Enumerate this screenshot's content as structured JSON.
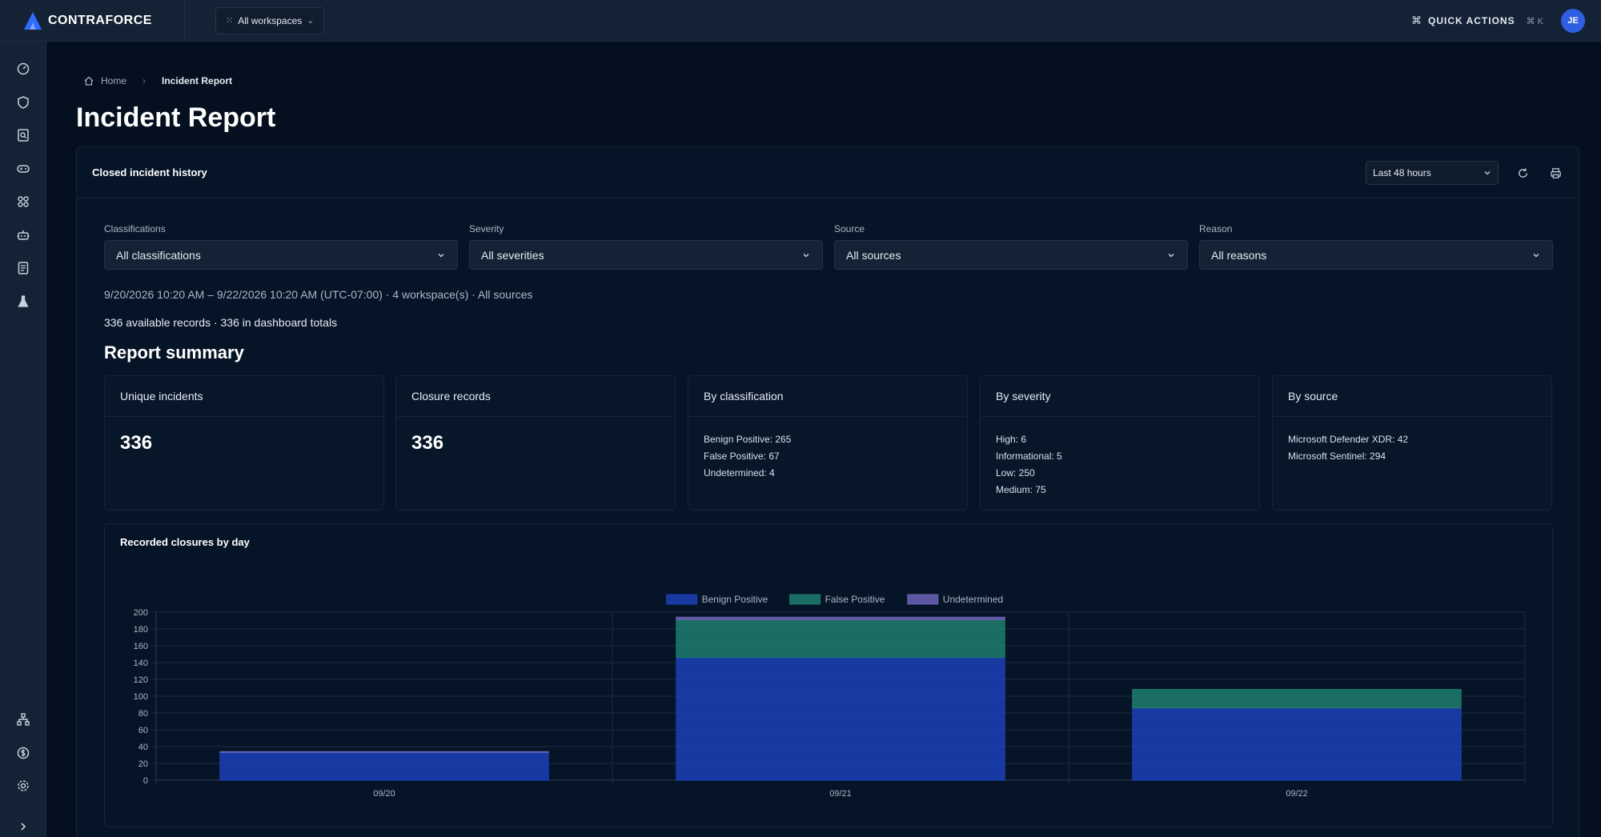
{
  "app": {
    "name": "CONTRAFORCE"
  },
  "topbar": {
    "workspace_select": "All workspaces",
    "quick_actions": "QUICK ACTIONS",
    "quick_actions_shortcut": "⌘ K",
    "avatar_initials": "JE"
  },
  "sidebar": {
    "items": [
      {
        "name": "dashboard-icon"
      },
      {
        "name": "shield-icon"
      },
      {
        "name": "search-document-icon"
      },
      {
        "name": "gamepad-icon"
      },
      {
        "name": "integrations-icon"
      },
      {
        "name": "robot-icon"
      },
      {
        "name": "report-icon"
      },
      {
        "name": "flask-icon"
      },
      {
        "name": "org-chart-icon"
      },
      {
        "name": "billing-icon"
      },
      {
        "name": "settings-icon"
      },
      {
        "name": "expand-icon"
      }
    ]
  },
  "breadcrumb": {
    "home": "Home",
    "current": "Incident Report"
  },
  "page": {
    "title": "Incident Report"
  },
  "panel": {
    "title": "Closed incident history",
    "range": "Last 48 hours"
  },
  "filters": [
    {
      "label": "Classifications",
      "value": "All classifications"
    },
    {
      "label": "Severity",
      "value": "All severities"
    },
    {
      "label": "Source",
      "value": "All sources"
    },
    {
      "label": "Reason",
      "value": "All reasons"
    }
  ],
  "meta": {
    "range_line": "9/20/2026 10:20 AM – 9/22/2026 10:20 AM (UTC-07:00) · 4 workspace(s) · All sources",
    "records_line": "336 available records · 336 in dashboard totals"
  },
  "summary": {
    "title": "Report summary",
    "unique_incidents": {
      "label": "Unique incidents",
      "value": "336"
    },
    "closure_records": {
      "label": "Closure records",
      "value": "336"
    },
    "by_classification": {
      "label": "By classification",
      "items": [
        "Benign Positive: 265",
        "False Positive: 67",
        "Undetermined: 4"
      ]
    },
    "by_severity": {
      "label": "By severity",
      "items": [
        "High: 6",
        "Informational: 5",
        "Low: 250",
        "Medium: 75"
      ]
    },
    "by_source": {
      "label": "By source",
      "items": [
        "Microsoft Defender XDR: 42",
        "Microsoft Sentinel: 294"
      ]
    }
  },
  "colors": {
    "benign": "#1c3eb8",
    "false_positive": "#1f7c6f",
    "undetermined": "#6c63b8",
    "accent": "#2f5fe0"
  },
  "chart_data": {
    "type": "bar",
    "title": "Recorded closures by day",
    "stacked": true,
    "categories": [
      "09/20",
      "09/21",
      "09/22"
    ],
    "series": [
      {
        "name": "Benign Positive",
        "values": [
          33,
          146,
          86
        ],
        "color": "#1c3eb8"
      },
      {
        "name": "False Positive",
        "values": [
          0,
          45,
          22
        ],
        "color": "#1f7c6f"
      },
      {
        "name": "Undetermined",
        "values": [
          1,
          3,
          0
        ],
        "color": "#6c63b8"
      }
    ],
    "ylim": [
      0,
      200
    ],
    "yticks": [
      0,
      20,
      40,
      60,
      80,
      100,
      120,
      140,
      160,
      180,
      200
    ],
    "legend_position": "top-center",
    "grid": true
  }
}
